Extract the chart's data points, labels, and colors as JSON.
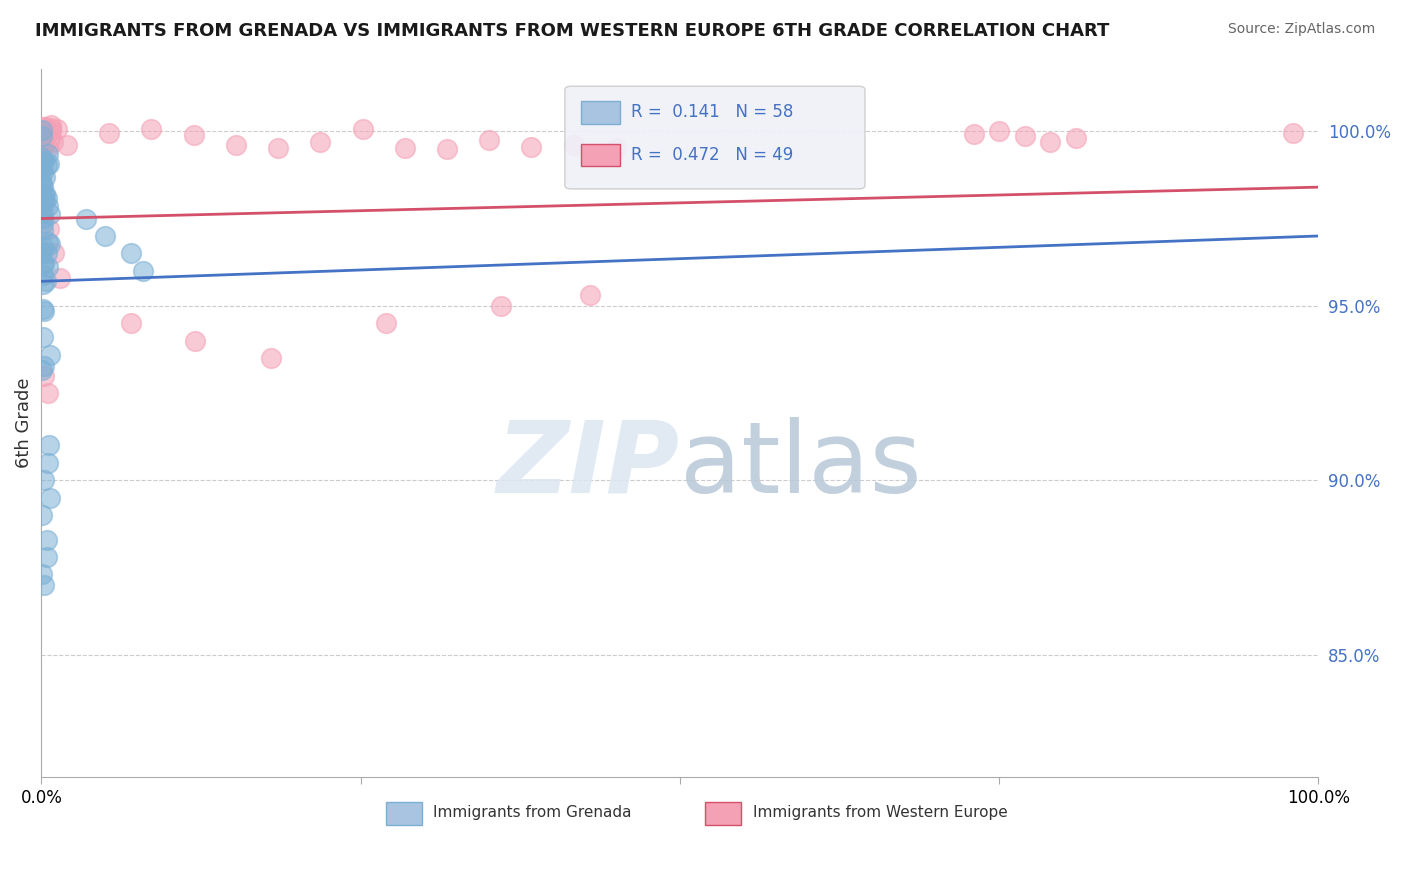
{
  "title": "IMMIGRANTS FROM GRENADA VS IMMIGRANTS FROM WESTERN EUROPE 6TH GRADE CORRELATION CHART",
  "source": "Source: ZipAtlas.com",
  "ylabel": "6th Grade",
  "ytick_labels": [
    "100.0%",
    "95.0%",
    "90.0%",
    "85.0%"
  ],
  "ytick_values": [
    1.0,
    0.95,
    0.9,
    0.85
  ],
  "xlim": [
    0.0,
    1.0
  ],
  "ylim": [
    0.815,
    1.018
  ],
  "series1_label": "Immigrants from Grenada",
  "series1_color": "#7bafd4",
  "series1_line_color": "#4472c4",
  "series1_R": 0.141,
  "series1_N": 58,
  "series2_label": "Immigrants from Western Europe",
  "series2_color": "#f4a0b5",
  "series2_line_color": "#d4506a",
  "series2_R": 0.472,
  "series2_N": 49,
  "bg_color": "#ffffff",
  "grid_color": "#cccccc",
  "watermark_color": "#dce6f0",
  "legend_face_color": "#f0f0f8",
  "legend_edge_color": "#cccccc"
}
